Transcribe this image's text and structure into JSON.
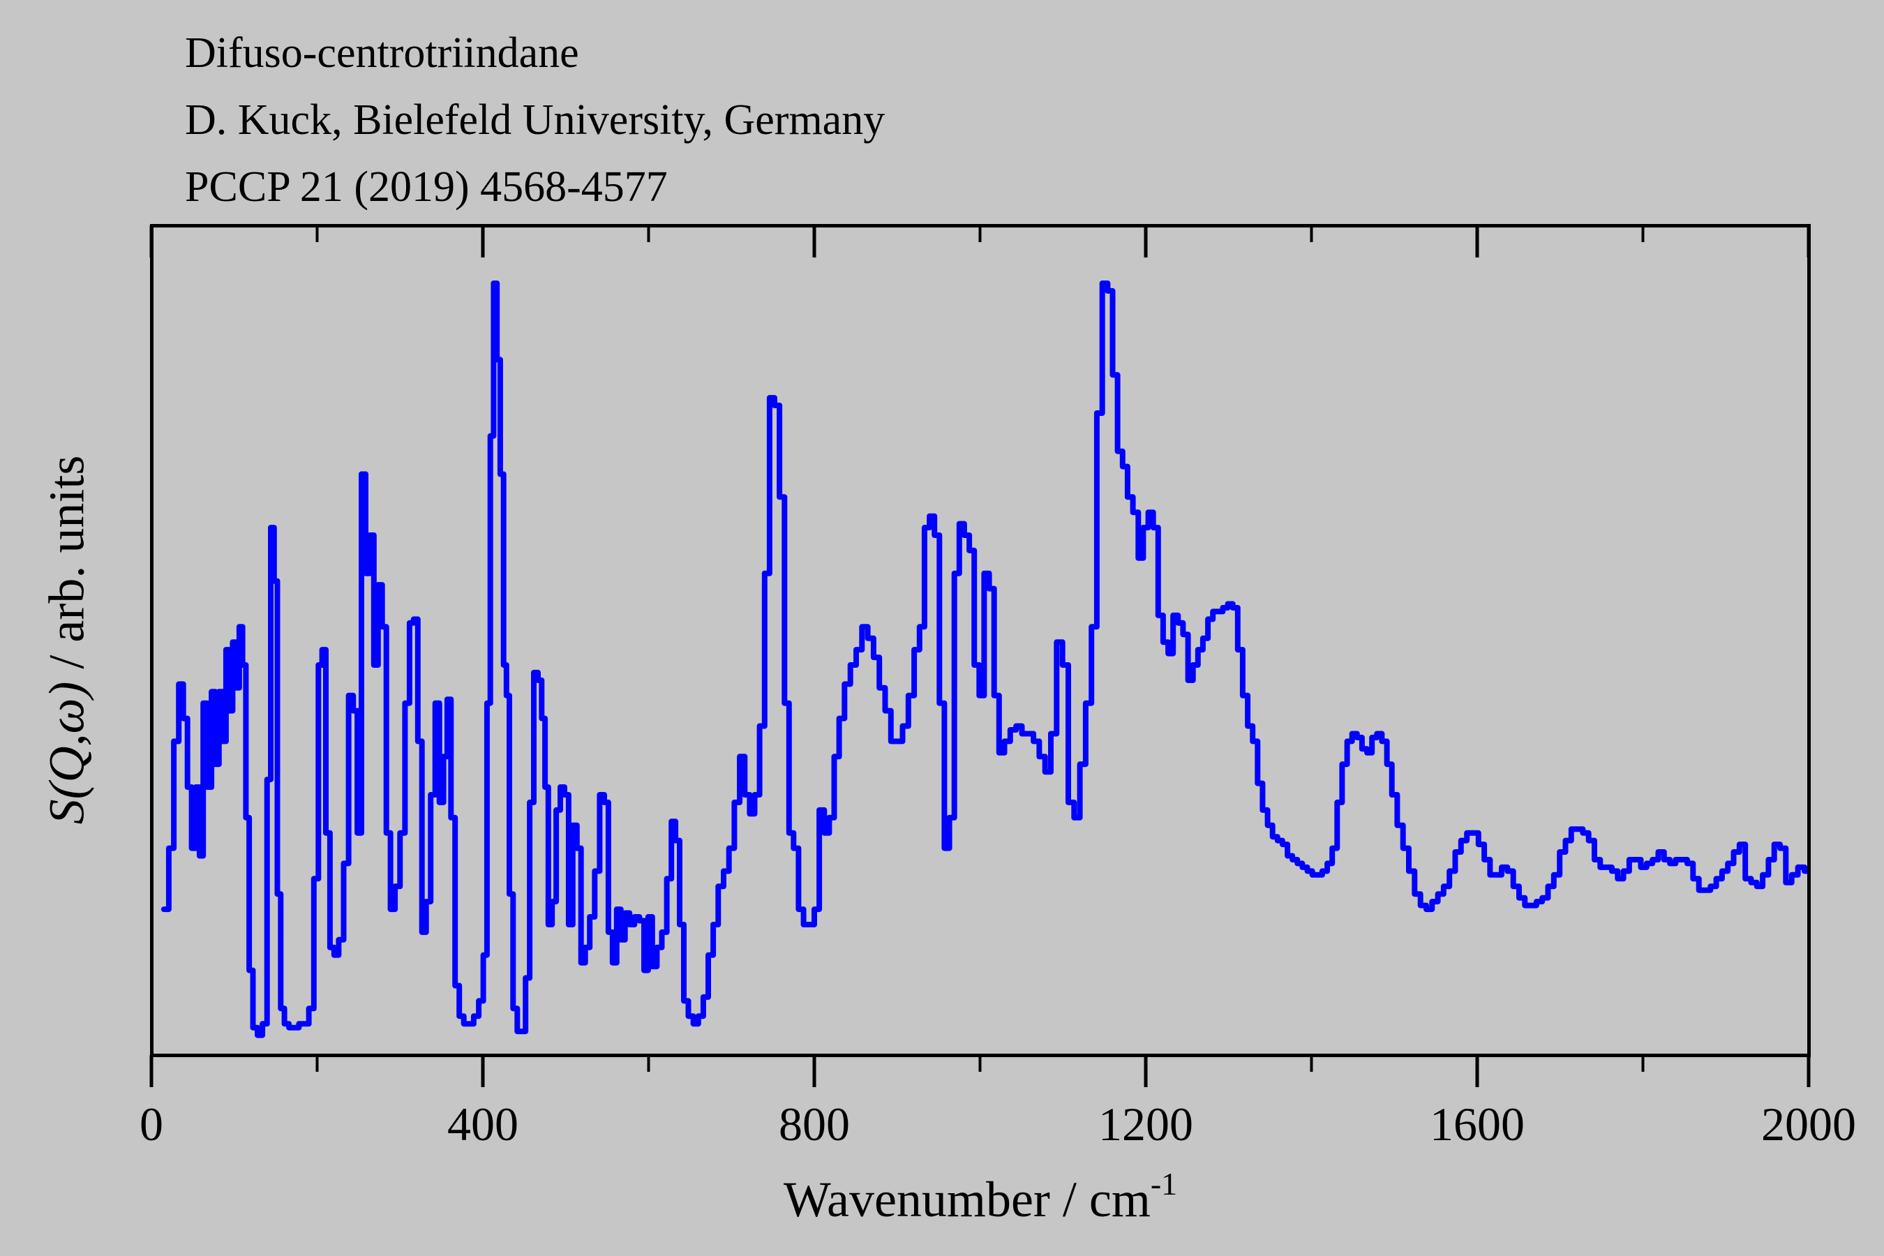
{
  "titles": {
    "line1": "Difuso-centrotriindane",
    "line2": "D. Kuck, Bielefeld University, Germany",
    "line3": "PCCP 21 (2019) 4568-4577"
  },
  "axes": {
    "x_label_main": "Wavenumber / cm",
    "x_label_sup": "-1",
    "y_label_italic": "S(Q,ω)",
    "y_label_rest": " / arb. units",
    "x_major_ticks": [
      0,
      400,
      800,
      1200,
      1600,
      2000
    ],
    "x_minor_ticks": [
      200,
      600,
      1000,
      1400,
      1800
    ],
    "x_range": [
      0,
      2000
    ]
  },
  "colors": {
    "background": "#c6c6c6",
    "line": "#0000ff",
    "frame": "#000000",
    "text": "#000000"
  },
  "chart_data": {
    "type": "line",
    "style": "steps",
    "title": "Difuso-centrotriindane",
    "subtitle1": "D. Kuck, Bielefeld University, Germany",
    "subtitle2": "PCCP 21 (2019) 4568-4577",
    "xlabel": "Wavenumber / cm^-1",
    "ylabel": "S(Q,ω) / arb. units",
    "x_range": [
      0,
      2000
    ],
    "y_range": [
      0,
      1.05
    ],
    "grid": false,
    "legend": "none",
    "x": [
      18,
      24,
      30,
      36,
      41,
      46,
      51,
      56,
      60,
      65,
      70,
      75,
      79,
      84,
      88,
      92,
      96,
      100,
      104,
      108,
      112,
      116,
      120,
      125,
      131,
      137,
      142,
      146,
      150,
      154,
      158,
      163,
      169,
      175,
      181,
      187,
      193,
      199,
      204,
      208,
      213,
      218,
      223,
      229,
      235,
      241,
      246,
      251,
      256,
      261,
      266,
      271,
      276,
      281,
      286,
      291,
      297,
      303,
      309,
      314,
      319,
      324,
      329,
      334,
      340,
      345,
      350,
      355,
      359,
      364,
      369,
      374,
      380,
      386,
      392,
      398,
      403,
      407,
      411,
      415,
      419,
      423,
      427,
      430,
      434,
      439,
      444,
      449,
      454,
      459,
      464,
      469,
      473,
      477,
      481,
      486,
      491,
      496,
      501,
      506,
      511,
      516,
      521,
      526,
      532,
      538,
      544,
      549,
      554,
      559,
      564,
      569,
      574,
      580,
      586,
      592,
      597,
      602,
      607,
      613,
      619,
      625,
      630,
      635,
      640,
      645,
      651,
      657,
      663,
      669,
      675,
      681,
      687,
      694,
      700,
      707,
      713,
      719,
      725,
      731,
      737,
      743,
      749,
      755,
      761,
      767,
      772,
      778,
      784,
      790,
      797,
      803,
      809,
      815,
      821,
      827,
      833,
      840,
      847,
      854,
      861,
      868,
      875,
      882,
      889,
      896,
      903,
      910,
      917,
      924,
      930,
      936,
      942,
      948,
      954,
      960,
      966,
      972,
      978,
      984,
      990,
      996,
      1002,
      1008,
      1014,
      1020,
      1026,
      1033,
      1040,
      1047,
      1054,
      1061,
      1068,
      1075,
      1082,
      1089,
      1096,
      1103,
      1110,
      1117,
      1124,
      1131,
      1138,
      1144,
      1151,
      1157,
      1163,
      1169,
      1175,
      1181,
      1188,
      1194,
      1200,
      1206,
      1212,
      1218,
      1224,
      1230,
      1236,
      1242,
      1248,
      1254,
      1260,
      1266,
      1272,
      1278,
      1284,
      1290,
      1296,
      1302,
      1308,
      1314,
      1320,
      1326,
      1332,
      1338,
      1344,
      1350,
      1356,
      1362,
      1368,
      1374,
      1380,
      1386,
      1392,
      1398,
      1404,
      1410,
      1416,
      1422,
      1428,
      1434,
      1440,
      1446,
      1452,
      1458,
      1464,
      1470,
      1476,
      1482,
      1488,
      1494,
      1500,
      1507,
      1514,
      1521,
      1528,
      1535,
      1542,
      1549,
      1556,
      1563,
      1570,
      1577,
      1584,
      1591,
      1598,
      1605,
      1612,
      1619,
      1626,
      1633,
      1640,
      1647,
      1654,
      1661,
      1668,
      1675,
      1682,
      1689,
      1696,
      1703,
      1710,
      1717,
      1724,
      1731,
      1738,
      1745,
      1752,
      1759,
      1766,
      1773,
      1780,
      1787,
      1794,
      1801,
      1808,
      1815,
      1822,
      1829,
      1836,
      1843,
      1850,
      1857,
      1864,
      1871,
      1878,
      1885,
      1892,
      1899,
      1906,
      1913,
      1920,
      1927,
      1934,
      1941,
      1948,
      1955,
      1962,
      1969,
      1976,
      1983,
      1991,
      1999
    ],
    "y": [
      0.18,
      0.26,
      0.4,
      0.475,
      0.43,
      0.34,
      0.26,
      0.34,
      0.25,
      0.45,
      0.34,
      0.465,
      0.37,
      0.465,
      0.4,
      0.52,
      0.44,
      0.53,
      0.47,
      0.55,
      0.5,
      0.3,
      0.1,
      0.025,
      0.015,
      0.03,
      0.35,
      0.68,
      0.61,
      0.2,
      0.05,
      0.03,
      0.025,
      0.025,
      0.03,
      0.03,
      0.05,
      0.22,
      0.5,
      0.52,
      0.28,
      0.13,
      0.12,
      0.14,
      0.24,
      0.46,
      0.44,
      0.28,
      0.75,
      0.62,
      0.67,
      0.5,
      0.605,
      0.55,
      0.28,
      0.18,
      0.21,
      0.28,
      0.45,
      0.555,
      0.56,
      0.4,
      0.15,
      0.19,
      0.33,
      0.45,
      0.32,
      0.38,
      0.455,
      0.3,
      0.08,
      0.04,
      0.03,
      0.03,
      0.04,
      0.06,
      0.12,
      0.45,
      0.8,
      1.0,
      0.9,
      0.75,
      0.5,
      0.46,
      0.2,
      0.05,
      0.02,
      0.02,
      0.09,
      0.32,
      0.49,
      0.48,
      0.43,
      0.34,
      0.16,
      0.19,
      0.31,
      0.34,
      0.33,
      0.16,
      0.29,
      0.26,
      0.11,
      0.13,
      0.17,
      0.23,
      0.33,
      0.32,
      0.15,
      0.11,
      0.18,
      0.14,
      0.175,
      0.16,
      0.17,
      0.165,
      0.1,
      0.17,
      0.105,
      0.13,
      0.15,
      0.22,
      0.295,
      0.27,
      0.16,
      0.06,
      0.04,
      0.03,
      0.04,
      0.065,
      0.12,
      0.16,
      0.21,
      0.23,
      0.26,
      0.32,
      0.38,
      0.33,
      0.305,
      0.33,
      0.42,
      0.62,
      0.85,
      0.84,
      0.72,
      0.45,
      0.28,
      0.26,
      0.18,
      0.16,
      0.16,
      0.18,
      0.31,
      0.28,
      0.3,
      0.38,
      0.43,
      0.475,
      0.5,
      0.52,
      0.55,
      0.535,
      0.51,
      0.47,
      0.44,
      0.4,
      0.4,
      0.42,
      0.46,
      0.52,
      0.55,
      0.68,
      0.695,
      0.67,
      0.45,
      0.26,
      0.3,
      0.62,
      0.685,
      0.67,
      0.65,
      0.5,
      0.46,
      0.62,
      0.6,
      0.46,
      0.385,
      0.4,
      0.415,
      0.42,
      0.41,
      0.41,
      0.4,
      0.38,
      0.36,
      0.41,
      0.53,
      0.5,
      0.32,
      0.3,
      0.37,
      0.45,
      0.55,
      0.83,
      1.0,
      0.99,
      0.88,
      0.78,
      0.76,
      0.72,
      0.7,
      0.64,
      0.68,
      0.7,
      0.68,
      0.565,
      0.53,
      0.515,
      0.565,
      0.555,
      0.54,
      0.48,
      0.5,
      0.52,
      0.535,
      0.56,
      0.57,
      0.57,
      0.575,
      0.58,
      0.575,
      0.52,
      0.46,
      0.42,
      0.4,
      0.345,
      0.31,
      0.29,
      0.275,
      0.27,
      0.265,
      0.25,
      0.245,
      0.24,
      0.235,
      0.23,
      0.225,
      0.225,
      0.23,
      0.24,
      0.26,
      0.32,
      0.37,
      0.4,
      0.41,
      0.405,
      0.39,
      0.385,
      0.405,
      0.41,
      0.4,
      0.37,
      0.33,
      0.29,
      0.26,
      0.23,
      0.2,
      0.185,
      0.18,
      0.19,
      0.2,
      0.21,
      0.23,
      0.255,
      0.27,
      0.28,
      0.28,
      0.265,
      0.245,
      0.225,
      0.225,
      0.235,
      0.23,
      0.21,
      0.195,
      0.185,
      0.185,
      0.19,
      0.195,
      0.21,
      0.225,
      0.255,
      0.27,
      0.285,
      0.285,
      0.28,
      0.27,
      0.245,
      0.235,
      0.235,
      0.23,
      0.22,
      0.23,
      0.245,
      0.245,
      0.235,
      0.24,
      0.245,
      0.255,
      0.245,
      0.24,
      0.245,
      0.245,
      0.24,
      0.22,
      0.205,
      0.205,
      0.21,
      0.22,
      0.23,
      0.24,
      0.255,
      0.265,
      0.22,
      0.215,
      0.21,
      0.225,
      0.245,
      0.265,
      0.26,
      0.215,
      0.225,
      0.235,
      0.23
    ]
  }
}
